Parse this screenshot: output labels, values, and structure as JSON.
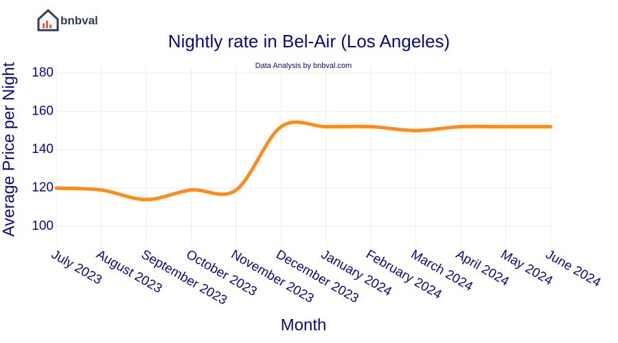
{
  "brand": "bnbval",
  "chart_data": {
    "type": "line",
    "title": "Nightly rate in Bel-Air (Los Angeles)",
    "subtitle": "Data Analysis by bnbval.com",
    "x_label": "Month",
    "y_label": "Average Price per Night",
    "categories": [
      "July 2023",
      "August 2023",
      "September 2023",
      "October 2023",
      "November 2023",
      "December 2023",
      "January 2024",
      "February 2024",
      "March 2024",
      "April 2024",
      "May 2024",
      "June 2024"
    ],
    "series": [
      {
        "name": "Average Price per Night",
        "color": "#ff8c1a",
        "values": [
          120,
          119,
          114,
          119,
          119,
          152,
          152,
          152,
          150,
          152,
          152,
          152
        ]
      }
    ],
    "ylim": [
      90,
      183
    ],
    "yticks": [
      100,
      120,
      140,
      160,
      180
    ],
    "grid": true
  }
}
